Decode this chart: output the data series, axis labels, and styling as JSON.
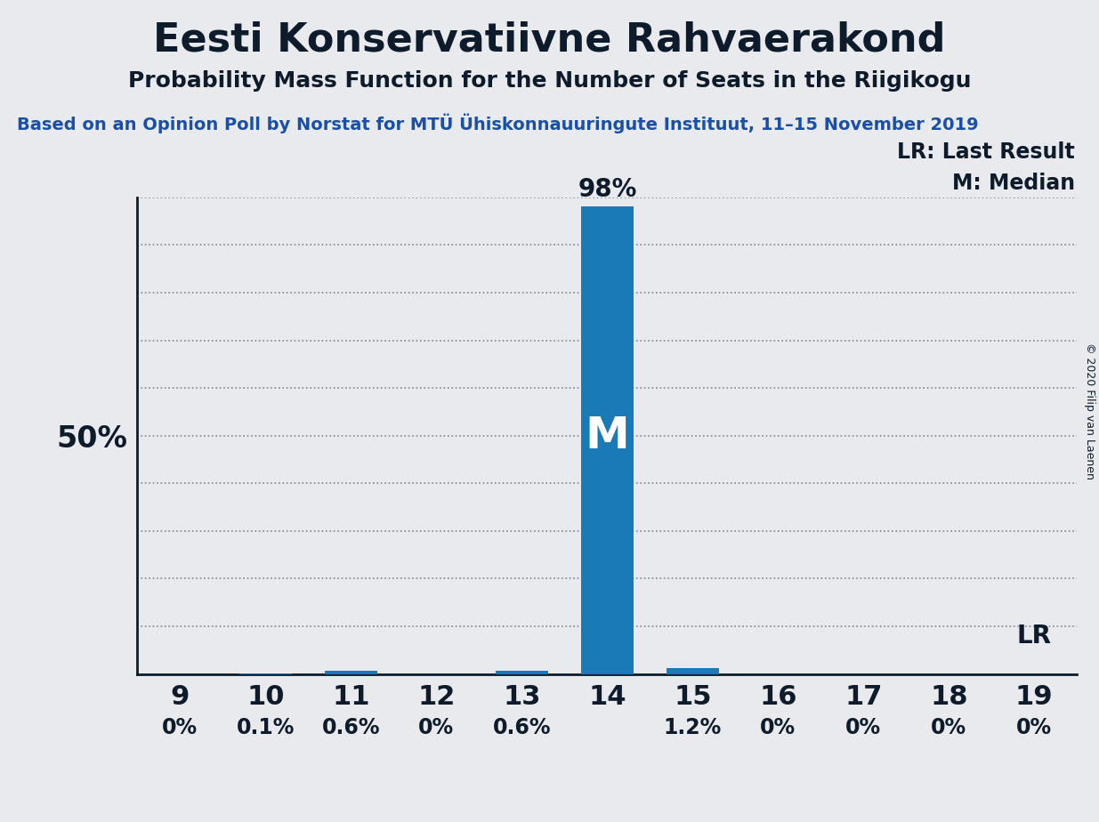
{
  "title": "Eesti Konservatiivne Rahvaerakond",
  "subtitle": "Probability Mass Function for the Number of Seats in the Riigikogu",
  "source_line": "Based on an Opinion Poll by Norstat for MTÜ Ühiskonnauuringute Instituut, 11–15 November 2019",
  "copyright": "© 2020 Filip van Laenen",
  "seats": [
    9,
    10,
    11,
    12,
    13,
    14,
    15,
    16,
    17,
    18,
    19
  ],
  "probabilities": [
    0.0,
    0.1,
    0.6,
    0.0,
    0.6,
    98.0,
    1.2,
    0.0,
    0.0,
    0.0,
    0.0
  ],
  "prob_labels": [
    "0%",
    "0.1%",
    "0.6%",
    "0%",
    "0.6%",
    "98%",
    "1.2%",
    "0%",
    "0%",
    "0%",
    "0%"
  ],
  "median_seat": 14,
  "last_result_seat": 19,
  "bar_color": "#1a7ab8",
  "background_color": "#e8eaed",
  "title_color": "#0d1b2a",
  "source_color": "#1a4fa8",
  "grid_color": "#444444",
  "ylim": [
    0,
    100
  ],
  "yticks": [
    0,
    10,
    20,
    30,
    40,
    50,
    60,
    70,
    80,
    90,
    100
  ],
  "figsize": [
    12.35,
    9.24
  ],
  "dpi": 100
}
